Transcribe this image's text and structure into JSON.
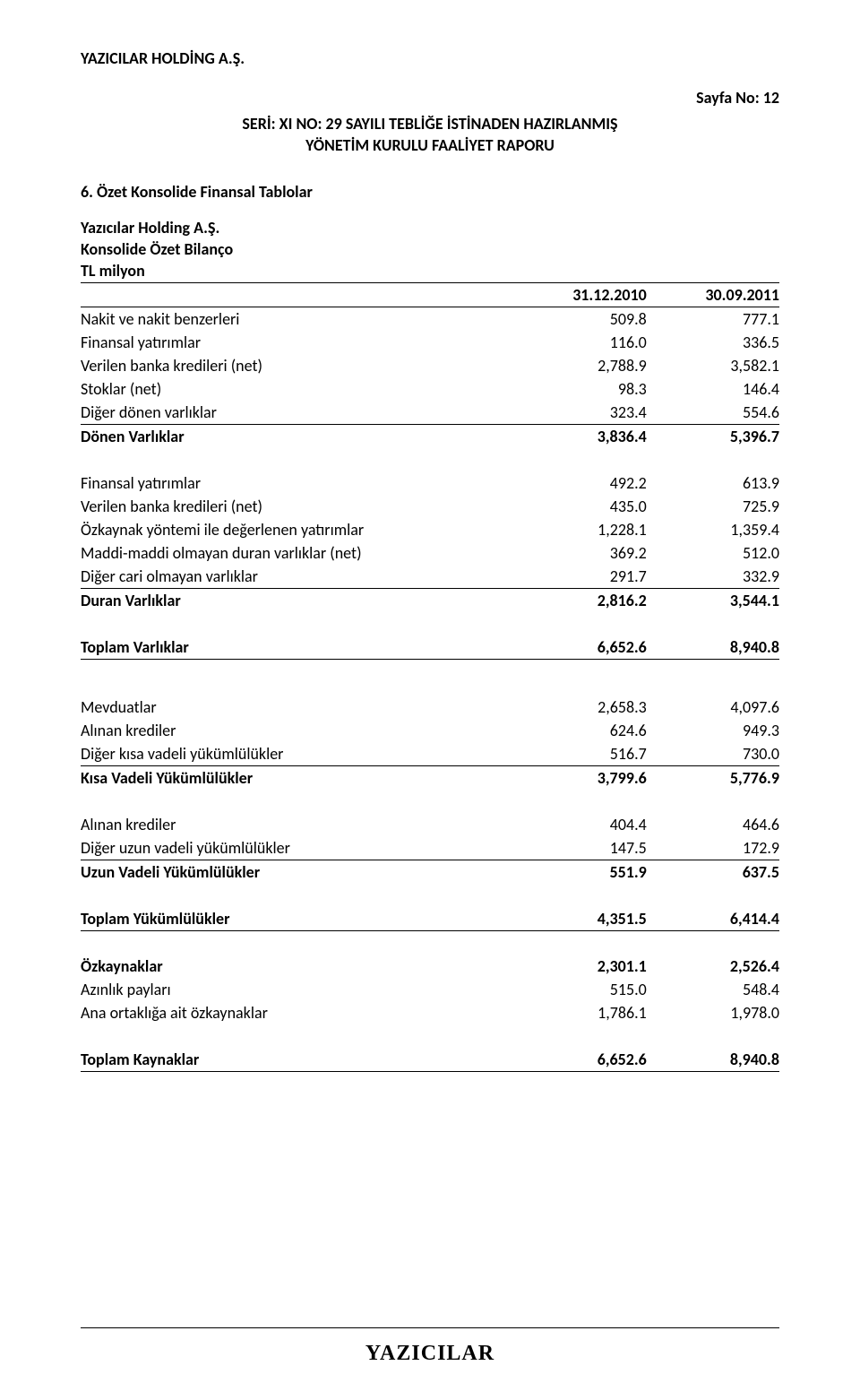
{
  "header": {
    "company": "YAZICILAR HOLDİNG A.Ş.",
    "page_label": "Sayfa No: 12",
    "report_line1": "SERİ: XI NO: 29 SAYILI TEBLİĞE İSTİNADEN HAZIRLANMIŞ",
    "report_line2": "YÖNETİM KURULU FAALİYET RAPORU"
  },
  "section": {
    "title": "6.    Özet Konsolide Finansal Tablolar",
    "subtitle": "Yazıcılar Holding A.Ş.",
    "table_title": "Konsolide Özet Bilanço",
    "unit": "TL milyon"
  },
  "columns": {
    "c1": "31.12.2010",
    "c2": "30.09.2011"
  },
  "rows": {
    "nakit": {
      "label": "Nakit ve nakit benzerleri",
      "v1": "509.8",
      "v2": "777.1"
    },
    "fin_yat_kisa": {
      "label": "Finansal yatırımlar",
      "v1": "116.0",
      "v2": "336.5"
    },
    "ver_kred_k": {
      "label": "Verilen banka kredileri (net)",
      "v1": "2,788.9",
      "v2": "3,582.1"
    },
    "stoklar": {
      "label": "Stoklar (net)",
      "v1": "98.3",
      "v2": "146.4"
    },
    "diger_donen": {
      "label": "Diğer dönen varlıklar",
      "v1": "323.4",
      "v2": "554.6"
    },
    "donen_var": {
      "label": "Dönen Varlıklar",
      "v1": "3,836.4",
      "v2": "5,396.7"
    },
    "fin_yat_uzun": {
      "label": "Finansal yatırımlar",
      "v1": "492.2",
      "v2": "613.9"
    },
    "ver_kred_u": {
      "label": "Verilen banka kredileri (net)",
      "v1": "435.0",
      "v2": "725.9"
    },
    "ozkaynak_yat": {
      "label": "Özkaynak yöntemi ile değerlenen yatırımlar",
      "v1": "1,228.1",
      "v2": "1,359.4"
    },
    "maddi": {
      "label": "Maddi-maddi olmayan duran varlıklar (net)",
      "v1": "369.2",
      "v2": "512.0"
    },
    "diger_cari": {
      "label": "Diğer cari olmayan varlıklar",
      "v1": "291.7",
      "v2": "332.9"
    },
    "duran_var": {
      "label": "Duran Varlıklar",
      "v1": "2,816.2",
      "v2": "3,544.1"
    },
    "toplam_var": {
      "label": "Toplam Varlıklar",
      "v1": "6,652.6",
      "v2": "8,940.8"
    },
    "mevduat": {
      "label": "Mevduatlar",
      "v1": "2,658.3",
      "v2": "4,097.6"
    },
    "alinan_k": {
      "label": "Alınan krediler",
      "v1": "624.6",
      "v2": "949.3"
    },
    "diger_kisa": {
      "label": "Diğer kısa vadeli yükümlülükler",
      "v1": "516.7",
      "v2": "730.0"
    },
    "kisa_vad": {
      "label": "Kısa Vadeli Yükümlülükler",
      "v1": "3,799.6",
      "v2": "5,776.9"
    },
    "alinan_u": {
      "label": "Alınan krediler",
      "v1": "404.4",
      "v2": "464.6"
    },
    "diger_uzun": {
      "label": "Diğer uzun vadeli yükümlülükler",
      "v1": "147.5",
      "v2": "172.9"
    },
    "uzun_vad": {
      "label": "Uzun Vadeli Yükümlülükler",
      "v1": "551.9",
      "v2": "637.5"
    },
    "toplam_yuk": {
      "label": "Toplam Yükümlülükler",
      "v1": "4,351.5",
      "v2": "6,414.4"
    },
    "ozkaynak": {
      "label": "Özkaynaklar",
      "v1": "2,301.1",
      "v2": "2,526.4"
    },
    "azinlik": {
      "label": "Azınlık payları",
      "v1": "515.0",
      "v2": "548.4"
    },
    "ana_ort": {
      "label": "Ana ortaklığa ait özkaynaklar",
      "v1": "1,786.1",
      "v2": "1,978.0"
    },
    "toplam_kay": {
      "label": "Toplam Kaynaklar",
      "v1": "6,652.6",
      "v2": "8,940.8"
    }
  },
  "footer": {
    "logo": "YAZICILAR"
  }
}
